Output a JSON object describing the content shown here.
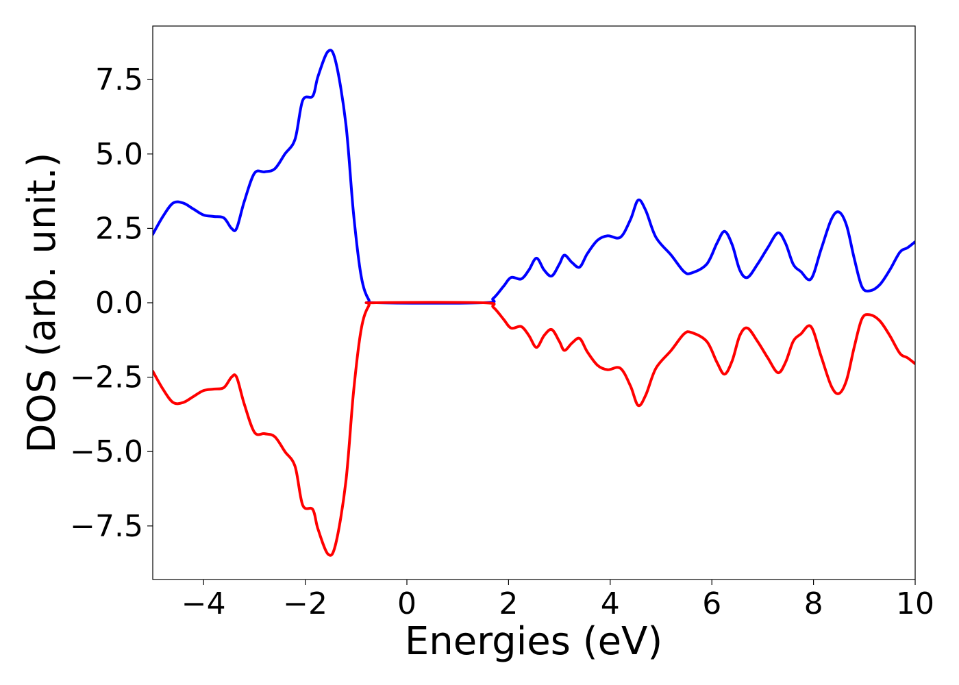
{
  "chart_data": {
    "type": "line",
    "title": "",
    "xlabel": "Energies (eV)",
    "ylabel": "DOS (arb. unit.)",
    "xlim": [
      -5,
      10
    ],
    "ylim": [
      -9.3,
      9.3
    ],
    "grid": false,
    "legend": "none",
    "x_ticks": [
      -4,
      -2,
      0,
      2,
      4,
      6,
      8,
      10
    ],
    "x_tick_labels": [
      "−4",
      "−2",
      "0",
      "2",
      "4",
      "6",
      "8",
      "10"
    ],
    "y_ticks": [
      7.5,
      5.0,
      2.5,
      0.0,
      -2.5,
      -5.0,
      -7.5
    ],
    "y_tick_labels": [
      "7.5",
      "5.0",
      "2.5",
      "0.0",
      "−2.5",
      "−5.0",
      "−7.5"
    ],
    "series": [
      {
        "color": "#0000ff",
        "points": [
          [
            -5.0,
            2.3
          ],
          [
            -4.8,
            2.9
          ],
          [
            -4.6,
            3.35
          ],
          [
            -4.4,
            3.35
          ],
          [
            -4.2,
            3.15
          ],
          [
            -4.0,
            2.95
          ],
          [
            -3.8,
            2.9
          ],
          [
            -3.6,
            2.85
          ],
          [
            -3.45,
            2.5
          ],
          [
            -3.35,
            2.5
          ],
          [
            -3.2,
            3.4
          ],
          [
            -3.0,
            4.35
          ],
          [
            -2.8,
            4.4
          ],
          [
            -2.6,
            4.5
          ],
          [
            -2.4,
            5.0
          ],
          [
            -2.2,
            5.5
          ],
          [
            -2.05,
            6.8
          ],
          [
            -1.85,
            6.95
          ],
          [
            -1.75,
            7.6
          ],
          [
            -1.55,
            8.45
          ],
          [
            -1.4,
            8.1
          ],
          [
            -1.2,
            6.0
          ],
          [
            -1.05,
            3.0
          ],
          [
            -0.9,
            0.9
          ],
          [
            -0.75,
            0.1
          ],
          [
            -0.6,
            0.0
          ],
          [
            1.5,
            0.0
          ],
          [
            1.7,
            0.15
          ],
          [
            1.9,
            0.55
          ],
          [
            2.05,
            0.85
          ],
          [
            2.25,
            0.8
          ],
          [
            2.4,
            1.1
          ],
          [
            2.55,
            1.5
          ],
          [
            2.7,
            1.1
          ],
          [
            2.85,
            0.9
          ],
          [
            3.0,
            1.3
          ],
          [
            3.1,
            1.6
          ],
          [
            3.25,
            1.35
          ],
          [
            3.4,
            1.2
          ],
          [
            3.55,
            1.65
          ],
          [
            3.75,
            2.1
          ],
          [
            3.95,
            2.25
          ],
          [
            4.2,
            2.2
          ],
          [
            4.4,
            2.8
          ],
          [
            4.55,
            3.45
          ],
          [
            4.7,
            3.1
          ],
          [
            4.9,
            2.2
          ],
          [
            5.2,
            1.6
          ],
          [
            5.45,
            1.05
          ],
          [
            5.6,
            1.0
          ],
          [
            5.9,
            1.3
          ],
          [
            6.1,
            2.0
          ],
          [
            6.25,
            2.4
          ],
          [
            6.4,
            1.95
          ],
          [
            6.55,
            1.1
          ],
          [
            6.7,
            0.85
          ],
          [
            6.9,
            1.3
          ],
          [
            7.1,
            1.85
          ],
          [
            7.3,
            2.35
          ],
          [
            7.45,
            2.0
          ],
          [
            7.6,
            1.3
          ],
          [
            7.75,
            1.05
          ],
          [
            7.95,
            0.8
          ],
          [
            8.15,
            1.8
          ],
          [
            8.35,
            2.8
          ],
          [
            8.5,
            3.05
          ],
          [
            8.65,
            2.6
          ],
          [
            8.8,
            1.5
          ],
          [
            8.95,
            0.55
          ],
          [
            9.1,
            0.4
          ],
          [
            9.3,
            0.6
          ],
          [
            9.5,
            1.1
          ],
          [
            9.7,
            1.7
          ],
          [
            9.85,
            1.85
          ],
          [
            10.0,
            2.05
          ]
        ]
      },
      {
        "color": "#ff0000",
        "points": [
          [
            -5.0,
            -2.3
          ],
          [
            -4.8,
            -2.9
          ],
          [
            -4.6,
            -3.35
          ],
          [
            -4.4,
            -3.35
          ],
          [
            -4.2,
            -3.15
          ],
          [
            -4.0,
            -2.95
          ],
          [
            -3.8,
            -2.9
          ],
          [
            -3.6,
            -2.85
          ],
          [
            -3.45,
            -2.5
          ],
          [
            -3.35,
            -2.5
          ],
          [
            -3.2,
            -3.4
          ],
          [
            -3.0,
            -4.35
          ],
          [
            -2.8,
            -4.4
          ],
          [
            -2.6,
            -4.5
          ],
          [
            -2.4,
            -5.0
          ],
          [
            -2.2,
            -5.5
          ],
          [
            -2.05,
            -6.8
          ],
          [
            -1.85,
            -6.95
          ],
          [
            -1.75,
            -7.6
          ],
          [
            -1.55,
            -8.45
          ],
          [
            -1.4,
            -8.1
          ],
          [
            -1.2,
            -6.0
          ],
          [
            -1.05,
            -3.0
          ],
          [
            -0.9,
            -0.9
          ],
          [
            -0.75,
            -0.1
          ],
          [
            -0.6,
            0.0
          ],
          [
            1.5,
            0.0
          ],
          [
            1.7,
            -0.15
          ],
          [
            1.9,
            -0.55
          ],
          [
            2.05,
            -0.85
          ],
          [
            2.25,
            -0.8
          ],
          [
            2.4,
            -1.1
          ],
          [
            2.55,
            -1.5
          ],
          [
            2.7,
            -1.1
          ],
          [
            2.85,
            -0.9
          ],
          [
            3.0,
            -1.3
          ],
          [
            3.1,
            -1.6
          ],
          [
            3.25,
            -1.35
          ],
          [
            3.4,
            -1.2
          ],
          [
            3.55,
            -1.65
          ],
          [
            3.75,
            -2.1
          ],
          [
            3.95,
            -2.25
          ],
          [
            4.2,
            -2.2
          ],
          [
            4.4,
            -2.8
          ],
          [
            4.55,
            -3.45
          ],
          [
            4.7,
            -3.1
          ],
          [
            4.9,
            -2.2
          ],
          [
            5.2,
            -1.6
          ],
          [
            5.45,
            -1.05
          ],
          [
            5.6,
            -1.0
          ],
          [
            5.9,
            -1.3
          ],
          [
            6.1,
            -2.0
          ],
          [
            6.25,
            -2.4
          ],
          [
            6.4,
            -1.95
          ],
          [
            6.55,
            -1.1
          ],
          [
            6.7,
            -0.85
          ],
          [
            6.9,
            -1.3
          ],
          [
            7.1,
            -1.85
          ],
          [
            7.3,
            -2.35
          ],
          [
            7.45,
            -2.0
          ],
          [
            7.6,
            -1.3
          ],
          [
            7.75,
            -1.05
          ],
          [
            7.95,
            -0.8
          ],
          [
            8.15,
            -1.8
          ],
          [
            8.35,
            -2.8
          ],
          [
            8.5,
            -3.05
          ],
          [
            8.65,
            -2.6
          ],
          [
            8.8,
            -1.5
          ],
          [
            8.95,
            -0.55
          ],
          [
            9.1,
            -0.4
          ],
          [
            9.3,
            -0.6
          ],
          [
            9.5,
            -1.1
          ],
          [
            9.7,
            -1.7
          ],
          [
            9.85,
            -1.85
          ],
          [
            10.0,
            -2.05
          ]
        ]
      }
    ]
  }
}
